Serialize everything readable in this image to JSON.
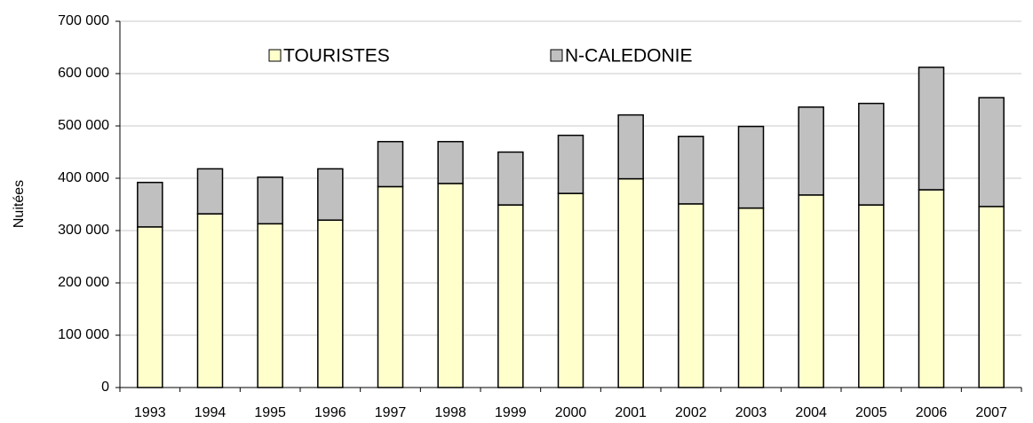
{
  "chart_data": {
    "type": "stacked-bar",
    "y_label": "Nuitées",
    "categories": [
      "1993",
      "1994",
      "1995",
      "1996",
      "1997",
      "1998",
      "1999",
      "2000",
      "2001",
      "2002",
      "2003",
      "2004",
      "2005",
      "2006",
      "2007"
    ],
    "series": [
      {
        "name": "TOURISTES",
        "color": "#ffffcc",
        "values": [
          307000,
          332000,
          313000,
          320000,
          384000,
          390000,
          349000,
          371000,
          399000,
          351000,
          343000,
          368000,
          349000,
          378000,
          346000
        ]
      },
      {
        "name": "N-CALEDONIE",
        "color": "#c0c0c0",
        "values": [
          85000,
          86000,
          89000,
          98000,
          86000,
          80000,
          101000,
          111000,
          122000,
          129000,
          156000,
          168000,
          194000,
          234000,
          208000
        ]
      }
    ],
    "ylim": [
      0,
      700000
    ],
    "yticks": [
      0,
      {
        "value": 100000,
        "label": "100 000"
      },
      {
        "value": 200000,
        "label": "200 000"
      },
      {
        "value": 300000,
        "label": "300 000"
      },
      {
        "value": 400000,
        "label": "400 000"
      },
      {
        "value": 500000,
        "label": "500 000"
      },
      {
        "value": 600000,
        "label": "600 000"
      },
      {
        "value": 700000,
        "label": "700 000"
      }
    ],
    "grid": true
  }
}
